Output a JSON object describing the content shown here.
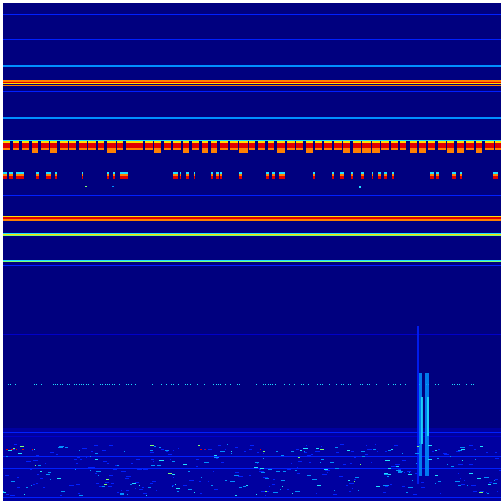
{
  "spectrogram": {
    "colormap": "jet",
    "colors": {
      "background": "#00007f",
      "dark_blue": "#0000c8",
      "blue": "#0020ff",
      "light_blue": "#0090ff",
      "cyan": "#20e0ff",
      "green": "#80ff70",
      "yellow": "#ffe000",
      "orange": "#ff8000",
      "red": "#e00000",
      "dark_red": "#900000"
    }
  }
}
